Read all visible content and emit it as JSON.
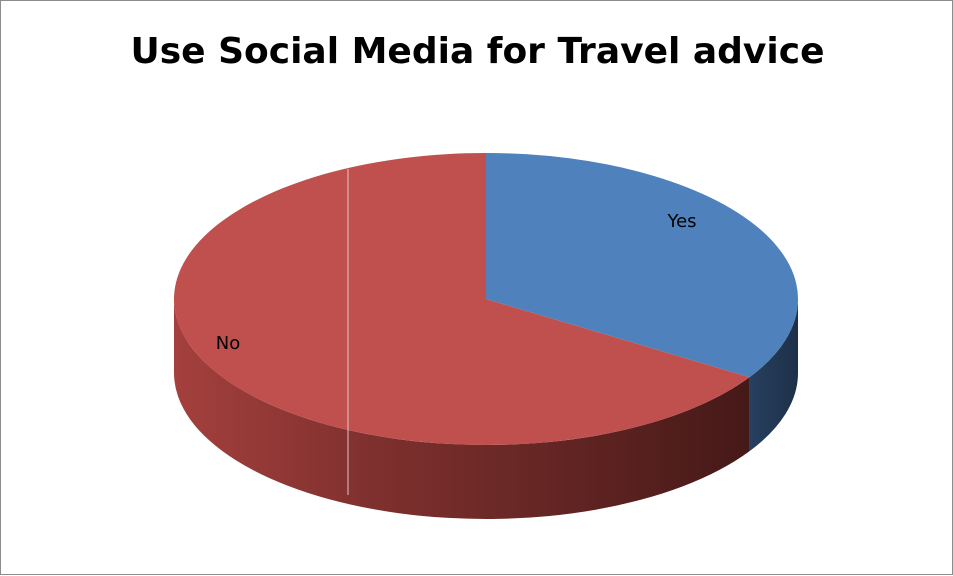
{
  "chart_data": {
    "type": "pie",
    "title": "Use Social Media for Travel advice",
    "categories": [
      "Yes",
      "No"
    ],
    "values": [
      34,
      66
    ],
    "colors": {
      "Yes": "#4f81bd",
      "No": "#c0504d"
    },
    "style": "3d-pie",
    "legend": "none",
    "data_labels": "category-name"
  }
}
